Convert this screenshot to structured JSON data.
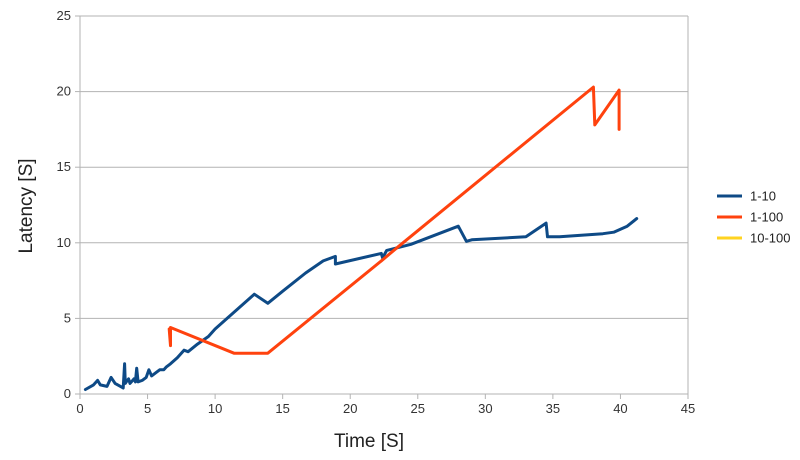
{
  "chart_data": {
    "type": "line",
    "xlabel": "Time [S]",
    "ylabel": "Latency [S]",
    "xlim": [
      0,
      45
    ],
    "ylim": [
      0,
      25
    ],
    "xticks": [
      0,
      5,
      10,
      15,
      20,
      25,
      30,
      35,
      40,
      45
    ],
    "yticks": [
      0,
      5,
      10,
      15,
      20,
      25
    ],
    "grid": "horizontal",
    "legend_position": "right",
    "series": [
      {
        "name": "1-10",
        "color": "#0e4a86",
        "points": [
          [
            0.4,
            0.3
          ],
          [
            1.0,
            0.6
          ],
          [
            1.3,
            0.9
          ],
          [
            1.5,
            0.6
          ],
          [
            2.0,
            0.5
          ],
          [
            2.3,
            1.1
          ],
          [
            2.6,
            0.7
          ],
          [
            3.0,
            0.5
          ],
          [
            3.2,
            0.4
          ],
          [
            3.3,
            2.0
          ],
          [
            3.35,
            0.7
          ],
          [
            3.5,
            0.9
          ],
          [
            3.6,
            1.0
          ],
          [
            3.7,
            0.7
          ],
          [
            3.9,
            0.9
          ],
          [
            4.0,
            1.0
          ],
          [
            4.1,
            0.8
          ],
          [
            4.2,
            1.7
          ],
          [
            4.3,
            0.8
          ],
          [
            4.6,
            0.9
          ],
          [
            4.9,
            1.1
          ],
          [
            5.1,
            1.6
          ],
          [
            5.3,
            1.2
          ],
          [
            5.6,
            1.4
          ],
          [
            5.9,
            1.6
          ],
          [
            6.2,
            1.6
          ],
          [
            6.4,
            1.8
          ],
          [
            6.7,
            2.0
          ],
          [
            7.2,
            2.4
          ],
          [
            7.7,
            2.9
          ],
          [
            8.0,
            2.8
          ],
          [
            8.7,
            3.3
          ],
          [
            9.5,
            3.8
          ],
          [
            10.0,
            4.3
          ],
          [
            12.9,
            6.6
          ],
          [
            13.9,
            6.0
          ],
          [
            15.0,
            6.8
          ],
          [
            16.7,
            8.0
          ],
          [
            18.0,
            8.8
          ],
          [
            18.9,
            9.1
          ],
          [
            18.9,
            8.6
          ],
          [
            22.3,
            9.3
          ],
          [
            22.4,
            9.0
          ],
          [
            22.7,
            9.5
          ],
          [
            24.5,
            9.9
          ],
          [
            28.0,
            11.1
          ],
          [
            28.6,
            10.1
          ],
          [
            29.0,
            10.2
          ],
          [
            33.0,
            10.4
          ],
          [
            34.5,
            11.3
          ],
          [
            34.6,
            10.4
          ],
          [
            35.5,
            10.4
          ],
          [
            38.7,
            10.6
          ],
          [
            39.5,
            10.7
          ],
          [
            40.5,
            11.1
          ],
          [
            41.2,
            11.6
          ]
        ]
      },
      {
        "name": "1-100",
        "color": "#ff420e",
        "points": [
          [
            6.6,
            4.3
          ],
          [
            6.7,
            3.2
          ],
          [
            6.7,
            4.4
          ],
          [
            11.4,
            2.7
          ],
          [
            13.9,
            2.7
          ],
          [
            22.3,
            8.8
          ],
          [
            23.5,
            9.7
          ],
          [
            38.0,
            20.3
          ],
          [
            38.1,
            17.8
          ],
          [
            39.9,
            20.1
          ],
          [
            39.9,
            17.5
          ]
        ]
      },
      {
        "name": "10-100",
        "color": "#ffd320",
        "points": []
      }
    ]
  }
}
